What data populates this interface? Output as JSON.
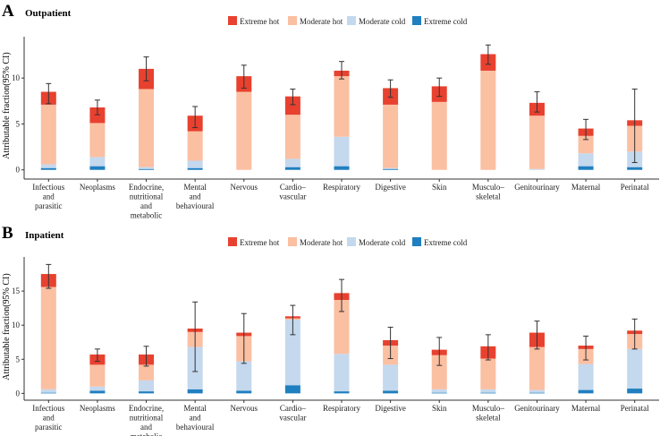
{
  "colors": {
    "extreme_hot": "#e8412f",
    "moderate_hot": "#fbbfa2",
    "moderate_cold": "#c4d8ee",
    "extreme_cold": "#1f7fc0",
    "error_bar": "#333333",
    "axis": "#333333"
  },
  "legend_entries": [
    "Extreme hot",
    "Moderate hot",
    "Moderate cold",
    "Extreme cold"
  ],
  "chart_data": [
    {
      "panel_letter": "A",
      "title": "Outpatient",
      "type": "bar",
      "stacked": true,
      "ylabel": "Attributable fraction(95% CI)",
      "ylim": [
        -1,
        14.5
      ],
      "yticks": [
        0,
        5,
        10
      ],
      "legend_position": "top",
      "categories": [
        [
          "Infectious",
          "and",
          "parasitic"
        ],
        [
          "Neoplasms"
        ],
        [
          "Endocrine,",
          "nutritional",
          "and",
          "metabolic"
        ],
        [
          "Mental",
          "and",
          "behavioural"
        ],
        [
          "Nervous"
        ],
        [
          "Cardio–",
          "vascular"
        ],
        [
          "Respiratory"
        ],
        [
          "Digestive"
        ],
        [
          "Skin"
        ],
        [
          "Musculo–",
          "skeletal"
        ],
        [
          "Genitourinary"
        ],
        [
          "Maternal"
        ],
        [
          "Perinatal"
        ]
      ],
      "series": [
        {
          "name": "Extreme cold",
          "values": [
            0.2,
            0.4,
            0.1,
            0.2,
            0.0,
            0.3,
            0.4,
            0.1,
            0.0,
            0.0,
            0.0,
            0.4,
            0.3
          ]
        },
        {
          "name": "Moderate cold",
          "values": [
            0.4,
            1.0,
            0.2,
            0.8,
            0.0,
            0.9,
            3.2,
            0.1,
            0.0,
            0.0,
            0.1,
            1.4,
            1.7
          ]
        },
        {
          "name": "Moderate hot",
          "values": [
            6.5,
            3.7,
            8.5,
            3.2,
            8.5,
            4.8,
            6.6,
            6.9,
            7.4,
            10.8,
            5.8,
            1.9,
            2.8
          ]
        },
        {
          "name": "Extreme hot",
          "values": [
            1.4,
            1.7,
            2.2,
            1.7,
            1.7,
            2.0,
            0.6,
            1.8,
            1.7,
            1.8,
            1.4,
            0.8,
            0.6
          ]
        }
      ],
      "ci_low": [
        7.2,
        6.0,
        9.7,
        4.6,
        8.9,
        7.1,
        9.9,
        7.9,
        8.0,
        11.5,
        6.3,
        3.3,
        0.8
      ],
      "ci_high": [
        9.4,
        7.6,
        12.3,
        6.9,
        11.4,
        8.8,
        11.8,
        9.8,
        10.0,
        13.6,
        8.5,
        5.5,
        8.8
      ]
    },
    {
      "panel_letter": "B",
      "title": "Inpatient",
      "type": "bar",
      "stacked": true,
      "ylabel": "Attributable fraction(95% CI)",
      "ylim": [
        -1,
        20
      ],
      "yticks": [
        0,
        5,
        10,
        15
      ],
      "legend_position": "top",
      "categories": [
        [
          "Infectious",
          "and",
          "parasitic"
        ],
        [
          "Neoplasms"
        ],
        [
          "Endocrine,",
          "nutritional",
          "and",
          "metabolic"
        ],
        [
          "Mental",
          "and",
          "behavioural"
        ],
        [
          "Nervous"
        ],
        [
          "Cardio–",
          "vascular"
        ],
        [
          "Respiratory"
        ],
        [
          "Digestive"
        ],
        [
          "Skin"
        ],
        [
          "Musculo–",
          "skeletal"
        ],
        [
          "Genitourinary"
        ],
        [
          "Maternal"
        ],
        [
          "Perinatal"
        ]
      ],
      "series": [
        {
          "name": "Extreme cold",
          "values": [
            0.1,
            0.4,
            0.3,
            0.6,
            0.4,
            1.2,
            0.3,
            0.4,
            0.1,
            0.1,
            0.1,
            0.5,
            0.7
          ]
        },
        {
          "name": "Moderate cold",
          "values": [
            0.5,
            0.6,
            1.6,
            6.2,
            4.3,
            9.6,
            5.5,
            3.8,
            0.5,
            0.5,
            0.4,
            3.8,
            5.8
          ]
        },
        {
          "name": "Moderate hot",
          "values": [
            15.0,
            3.2,
            2.3,
            2.2,
            3.7,
            0.2,
            7.9,
            2.8,
            5.0,
            4.5,
            6.3,
            2.2,
            2.2
          ]
        },
        {
          "name": "Extreme hot",
          "values": [
            1.9,
            1.5,
            1.5,
            0.5,
            0.5,
            0.3,
            1.0,
            0.8,
            0.8,
            1.8,
            2.1,
            0.5,
            0.5
          ]
        }
      ],
      "ci_low": [
        15.4,
        4.7,
        4.0,
        3.2,
        4.4,
        8.6,
        12.0,
        5.1,
        4.1,
        4.9,
        6.5,
        4.9,
        6.5
      ],
      "ci_high": [
        18.9,
        6.5,
        6.9,
        13.4,
        11.7,
        12.9,
        16.7,
        9.7,
        8.2,
        8.6,
        10.6,
        8.4,
        10.9
      ]
    }
  ]
}
